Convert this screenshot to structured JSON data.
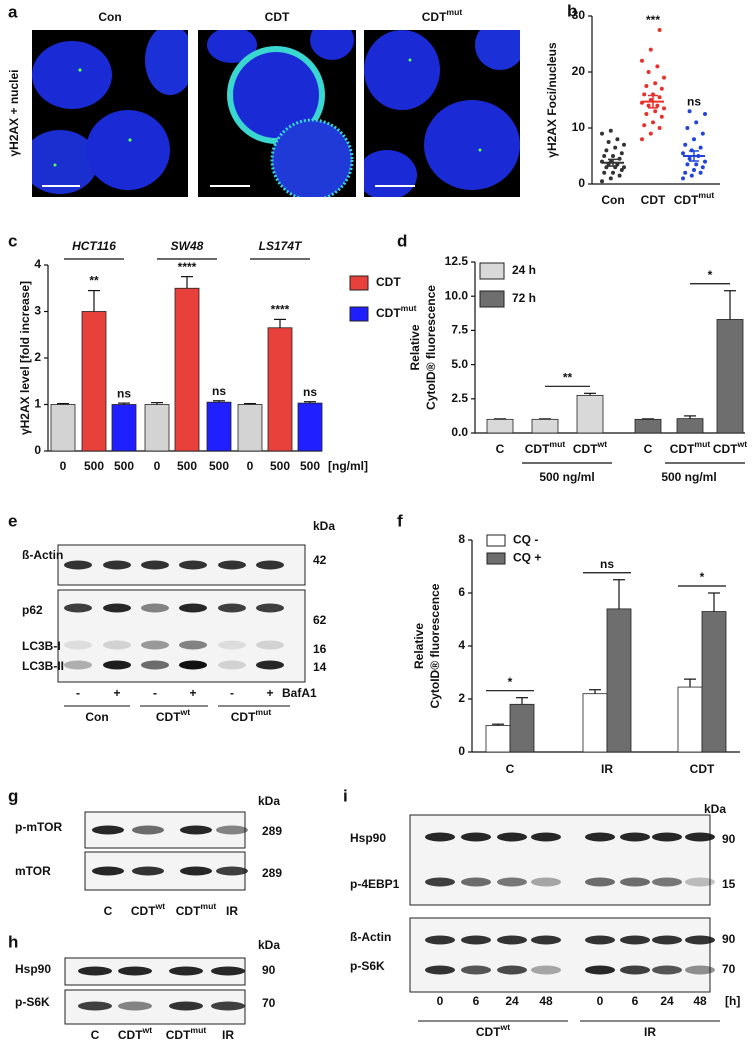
{
  "panels": {
    "a": {
      "panel": "a",
      "ylabel": "γH2AX + nuclei",
      "titles": [
        "Con",
        "CDT",
        {
          "text": "CDT",
          "sup": "mut"
        }
      ]
    }
  },
  "chart_data": [
    {
      "panel": "b",
      "type": "scatter",
      "ylabel": "γH2AX Foci/nucleus",
      "categories": [
        "Con",
        "CDT",
        {
          "text": "CDT",
          "sup": "mut"
        }
      ],
      "colors": [
        "#333333",
        "#e8312c",
        "#2244dd"
      ],
      "points": [
        [
          0.5,
          1,
          1.5,
          2,
          2,
          2.5,
          3,
          3,
          3,
          3.5,
          3.5,
          4,
          4,
          4.5,
          5,
          5,
          5.5,
          6,
          6.5,
          7,
          7.5,
          8,
          9,
          9.5
        ],
        [
          8,
          9,
          10,
          10.5,
          11,
          12,
          12.5,
          13,
          13.5,
          14,
          14,
          14.5,
          15,
          15.5,
          16,
          16,
          17,
          17.5,
          18,
          19,
          20,
          21,
          22,
          24,
          27.5
        ],
        [
          1,
          1.5,
          2,
          2,
          2.5,
          3,
          3.5,
          3.5,
          4,
          4.5,
          5,
          5.5,
          6,
          6.5,
          7,
          8,
          9,
          10,
          11,
          12.5,
          13
        ]
      ],
      "means": [
        3.8,
        14.7,
        5.0
      ],
      "errors": [
        0.6,
        1.1,
        0.9
      ],
      "annotations": [
        "***",
        "ns"
      ],
      "ylim": [
        0,
        30
      ],
      "yticks": [
        0,
        10,
        20,
        30
      ]
    },
    {
      "panel": "c",
      "type": "bar",
      "ylabel": "γH2AX level [fold increase]",
      "groups": [
        "HCT116",
        "SW48",
        "LS174T"
      ],
      "categories": [
        "0",
        "500",
        "500",
        "0",
        "500",
        "500",
        "0",
        "500",
        "500"
      ],
      "x_unit": "[ng/ml]",
      "values": [
        1.0,
        3.0,
        1.0,
        1.0,
        3.5,
        1.05,
        1.0,
        2.65,
        1.03
      ],
      "errors": [
        0.02,
        0.45,
        0.03,
        0.04,
        0.25,
        0.03,
        0.02,
        0.18,
        0.03
      ],
      "colors": [
        "#d3d3d3",
        "#e8413c",
        "#1f1fff",
        "#d3d3d3",
        "#e8413c",
        "#1f1fff",
        "#d3d3d3",
        "#e8413c",
        "#1f1fff"
      ],
      "legend": [
        {
          "name": "CDT",
          "color": "#e8413c"
        },
        {
          "name": {
            "text": "CDT",
            "sup": "mut"
          },
          "color": "#1f1fff"
        }
      ],
      "annotations": [
        "**",
        "ns",
        "****",
        "ns",
        "****",
        "ns"
      ],
      "ylim": [
        0,
        4
      ],
      "yticks": [
        0,
        1,
        2,
        3,
        4
      ]
    },
    {
      "panel": "d",
      "type": "bar",
      "ylabel": [
        "Relative",
        "CytoID® fluorescence"
      ],
      "categories": [
        "C",
        {
          "text": "CDT",
          "sup": "mut"
        },
        {
          "text": "CDT",
          "sup": "wt"
        },
        "C",
        {
          "text": "CDT",
          "sup": "mut"
        },
        {
          "text": "CDT",
          "sup": "wt"
        }
      ],
      "series": [
        {
          "name": "24 h",
          "color": "#d9d9d9",
          "values": [
            1.0,
            1.0,
            2.75,
            null,
            null,
            null
          ],
          "errors": [
            0.03,
            0.03,
            0.15,
            null,
            null,
            null
          ]
        },
        {
          "name": "72 h",
          "color": "#6e6e6e",
          "values": [
            null,
            null,
            null,
            1.0,
            1.05,
            8.3
          ],
          "errors": [
            null,
            null,
            null,
            0.03,
            0.2,
            2.1
          ]
        }
      ],
      "dose_labels": [
        "500 ng/ml",
        "500 ng/ml"
      ],
      "annotations": [
        "**",
        "*"
      ],
      "ylim": [
        0,
        12.5
      ],
      "yticks": [
        {
          "value": 0,
          "label": "0.0"
        },
        {
          "value": 2.5,
          "label": "2.5"
        },
        {
          "value": 5,
          "label": "5.0"
        },
        {
          "value": 7.5,
          "label": "7.5"
        },
        {
          "value": 10,
          "label": "10.0"
        },
        {
          "value": 12.5,
          "label": "12.5"
        }
      ]
    },
    {
      "panel": "f",
      "type": "bar",
      "ylabel": [
        "Relative",
        "CytoID® fluorescence"
      ],
      "categories": [
        "C",
        "IR",
        "CDT"
      ],
      "series": [
        {
          "name": "CQ -",
          "color": "#ffffff",
          "values": [
            1.0,
            2.2,
            2.45
          ],
          "errors": [
            0.05,
            0.15,
            0.3
          ]
        },
        {
          "name": "CQ +",
          "color": "#6e6e6e",
          "values": [
            1.8,
            5.4,
            5.3
          ],
          "errors": [
            0.25,
            1.1,
            0.7
          ]
        }
      ],
      "annotations": [
        "*",
        "ns",
        "*"
      ],
      "ylim": [
        0,
        8
      ],
      "yticks": [
        0,
        2,
        4,
        6,
        8
      ]
    }
  ],
  "blots": {
    "e": {
      "panel": "e",
      "kda_header": "kDa",
      "rows": [
        {
          "label": "ß-Actin",
          "kda": 42
        },
        {
          "label": "p62",
          "kda": 62
        },
        {
          "label": "LC3B-I",
          "kda": 16
        },
        {
          "label": "LC3B-II",
          "kda": 14
        }
      ],
      "treatment": "BafA1",
      "lanes": [
        "-",
        "+",
        "-",
        "+",
        "-",
        "+"
      ],
      "groups": [
        "Con",
        {
          "text": "CDT",
          "sup": "wt"
        },
        {
          "text": "CDT",
          "sup": "mut"
        }
      ]
    },
    "g": {
      "panel": "g",
      "kda_header": "kDa",
      "rows": [
        {
          "label": "p-mTOR",
          "kda": 289
        },
        {
          "label": "mTOR",
          "kda": 289
        }
      ],
      "lanes": [
        "C",
        {
          "text": "CDT",
          "sup": "wt"
        },
        {
          "text": "CDT",
          "sup": "mut"
        },
        "IR"
      ]
    },
    "h": {
      "panel": "h",
      "kda_header": "kDa",
      "rows": [
        {
          "label": "Hsp90",
          "kda": 90
        },
        {
          "label": "p-S6K",
          "kda": 70
        }
      ],
      "lanes": [
        "C",
        {
          "text": "CDT",
          "sup": "wt"
        },
        {
          "text": "CDT",
          "sup": "mut"
        },
        "IR"
      ]
    },
    "i": {
      "panel": "i",
      "kda_header": "kDa",
      "rows": [
        {
          "label": "Hsp90",
          "kda": 90
        },
        {
          "label": "p-4EBP1",
          "kda": 15
        },
        {
          "label": "ß-Actin",
          "kda": 90
        },
        {
          "label": "p-S6K",
          "kda": 70
        }
      ],
      "lanes": [
        0,
        6,
        24,
        48,
        0,
        6,
        24,
        48
      ],
      "lane_unit": "[h]",
      "groups": [
        {
          "text": "CDT",
          "sup": "wt"
        },
        "IR"
      ]
    }
  }
}
